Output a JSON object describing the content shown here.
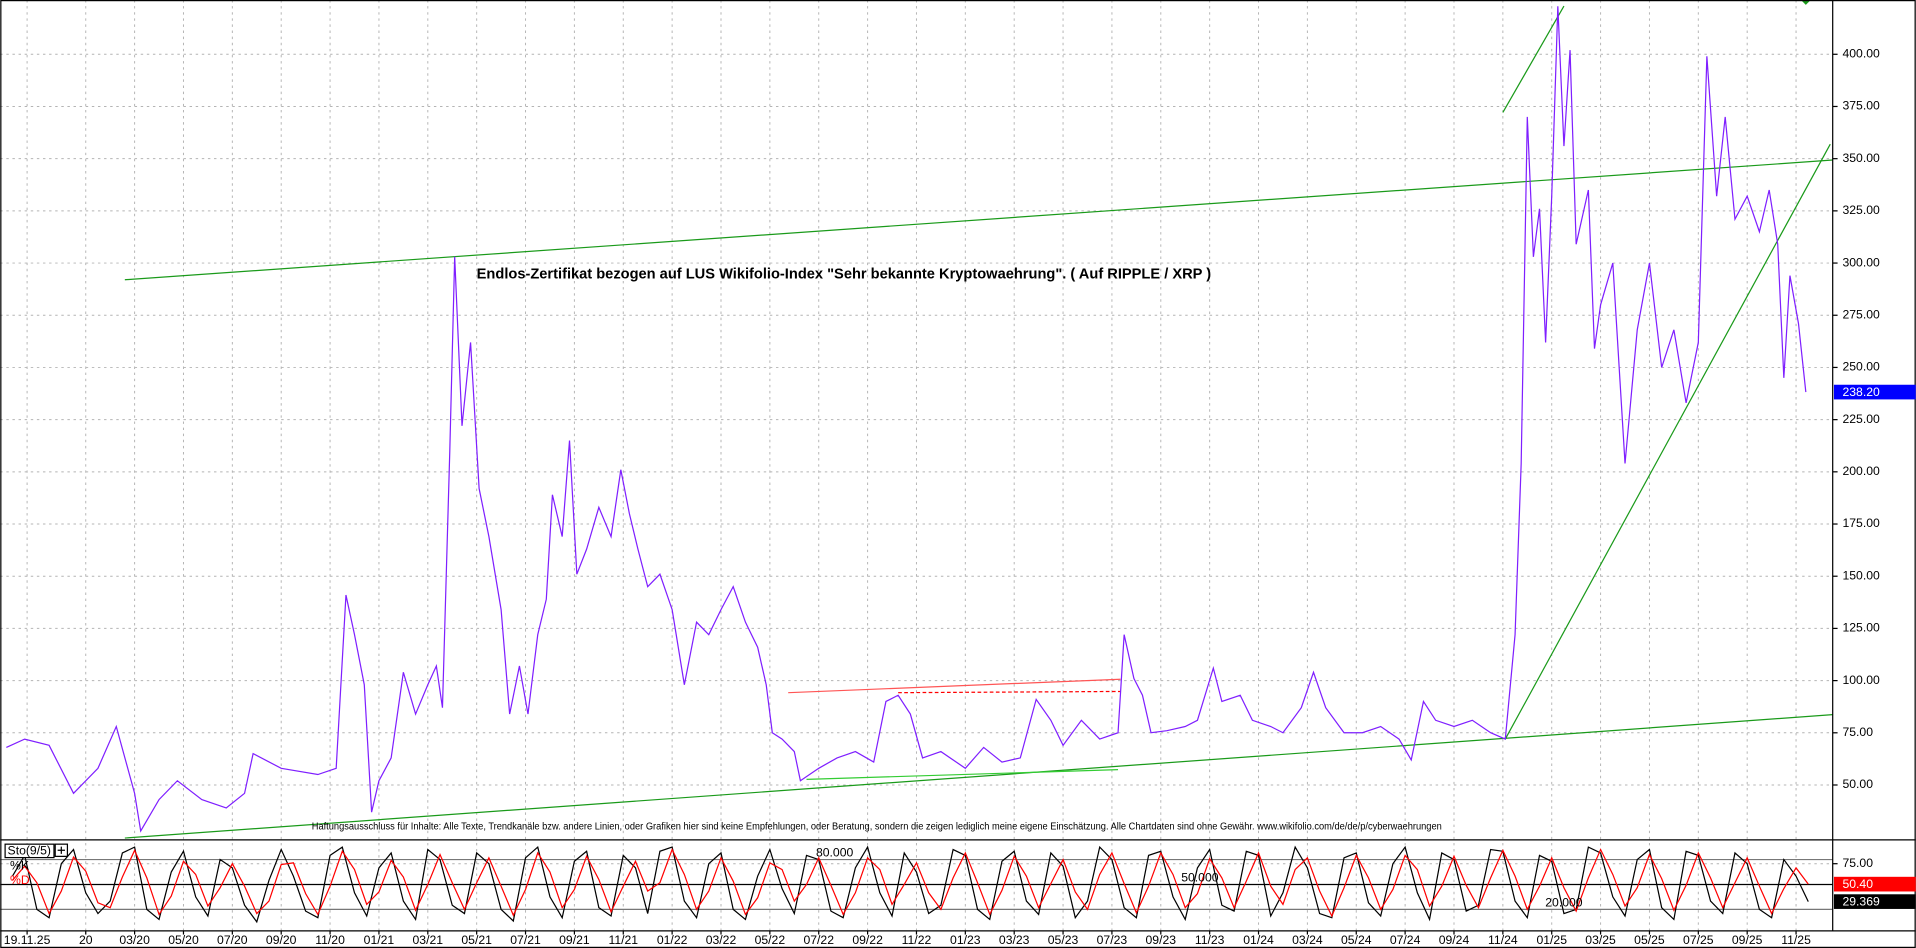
{
  "chart_data": [
    {
      "type": "line",
      "title": "Endlos-Zertifikat bezogen auf LUS Wikifolio-Index \"Sehr bekannte Kryptowaehrung\". ( Auf RIPPLE / XRP )",
      "footnote": "Haftungsausschluss für Inhalte: Alle Texte, Trendkanäle bzw. andere Linien, oder Grafiken hier sind keine Empfehlungen, oder Beratung, sondern die zeigen lediglich meine eigene Einschätzung. Alle Chartdaten sind ohne Gewähr.  www.wikifolio.com/de/de/p/cyberwaehrungen",
      "x": [
        -1.25,
        -0.5,
        0.5,
        1.5,
        2.5,
        3.25,
        4,
        4.25,
        5,
        5.75,
        6.75,
        7.75,
        8.5,
        8.85,
        10,
        11.5,
        12.25,
        12.65,
        13,
        13.4,
        13.7,
        14,
        14.5,
        15,
        15.5,
        16,
        16.35,
        16.6,
        16.9,
        17.1,
        17.4,
        17.75,
        18.1,
        18.5,
        19,
        19.35,
        19.75,
        20.1,
        20.5,
        20.85,
        21.1,
        21.5,
        21.8,
        22.1,
        22.5,
        23,
        23.5,
        23.9,
        24.25,
        24.6,
        25,
        25.5,
        26,
        26.5,
        27,
        27.5,
        28,
        28.5,
        29,
        29.5,
        29.85,
        30.1,
        30.5,
        31,
        31.25,
        32,
        32.75,
        33.5,
        34.25,
        34.75,
        35.25,
        35.75,
        36.25,
        37,
        38,
        38.75,
        39.5,
        40.25,
        40.9,
        41.5,
        42,
        42.75,
        43.5,
        44.25,
        44.5,
        44.9,
        45.25,
        45.6,
        46.25,
        47,
        47.5,
        48.15,
        48.5,
        49.25,
        49.75,
        50.5,
        51,
        51.75,
        52.25,
        52.75,
        53.5,
        54.25,
        55,
        55.75,
        56.25,
        56.75,
        57.25,
        58,
        58.75,
        59.5,
        60.1,
        60.5,
        60.75,
        61,
        61.25,
        61.5,
        61.75,
        62,
        62.25,
        62.5,
        62.75,
        63,
        63.5,
        63.75,
        64,
        64.5,
        65,
        65.5,
        66,
        66.5,
        67,
        67.5,
        68,
        68.35,
        68.75,
        69.1,
        69.5,
        70,
        70.5,
        70.9,
        71.25,
        71.5,
        71.75,
        72.1,
        72.4
      ],
      "series": [
        {
          "color": "#7f1fff",
          "last_label": "238.20",
          "label_color": "#0000ff",
          "values": [
            68,
            72,
            69,
            46,
            58,
            78,
            46,
            28,
            43,
            52,
            43,
            39,
            46,
            65,
            58,
            55,
            58,
            141,
            122,
            98,
            37,
            52,
            63,
            104,
            84,
            98,
            107,
            87,
            210,
            303,
            222,
            262,
            192,
            169,
            134,
            84,
            107,
            84,
            122,
            139,
            189,
            169,
            215,
            151,
            163,
            183,
            169,
            201,
            180,
            163,
            145,
            151,
            134,
            98,
            128,
            122,
            134,
            145,
            128,
            116,
            98,
            75,
            72,
            66,
            52,
            58,
            63,
            66,
            61,
            90,
            93,
            84,
            63,
            66,
            58,
            68,
            61,
            63,
            91,
            81,
            69,
            81,
            72,
            75,
            122,
            101,
            93,
            75,
            76,
            78,
            81,
            106,
            90,
            93,
            81,
            78,
            75,
            87,
            104,
            87,
            75,
            75,
            78,
            72,
            62,
            90,
            81,
            78,
            81,
            75,
            72,
            122,
            204,
            370,
            303,
            326,
            262,
            332,
            423,
            356,
            402,
            309,
            335,
            259,
            280,
            300,
            204,
            268,
            300,
            250,
            268,
            233,
            262,
            399,
            332,
            370,
            321,
            332,
            315,
            335,
            309,
            245,
            294,
            271,
            238.2
          ]
        }
      ],
      "xlim": [
        -1.5,
        73.5
      ],
      "ylim": [
        24,
        426
      ],
      "yticks": [
        {
          "value": 50,
          "label": "50.00"
        },
        {
          "value": 75,
          "label": "75.00"
        },
        {
          "value": 100,
          "label": "100.00"
        },
        {
          "value": 125,
          "label": "125.00"
        },
        {
          "value": 150,
          "label": "150.00"
        },
        {
          "value": 175,
          "label": "175.00"
        },
        {
          "value": 200,
          "label": "200.00"
        },
        {
          "value": 225,
          "label": "225.00"
        },
        {
          "value": 250,
          "label": "250.00"
        },
        {
          "value": 275,
          "label": "275.00"
        },
        {
          "value": 300,
          "label": "300.00"
        },
        {
          "value": 325,
          "label": "325.00"
        },
        {
          "value": 350,
          "label": "350.00"
        },
        {
          "value": 375,
          "label": "375.00"
        },
        {
          "value": 400,
          "label": "400.00"
        }
      ],
      "grid": true
    },
    {
      "type": "line",
      "title": "Sto(9/5)",
      "x": [
        -1,
        -0.5,
        0,
        0.5,
        1,
        1.5,
        2,
        2.5,
        3,
        3.5,
        4,
        4.5,
        5,
        5.5,
        6,
        6.5,
        7,
        7.5,
        8,
        8.5,
        9,
        9.5,
        10,
        10.5,
        11,
        11.5,
        12,
        12.5,
        13,
        13.5,
        14,
        14.5,
        15,
        15.5,
        16,
        16.5,
        17,
        17.5,
        18,
        18.5,
        19,
        19.5,
        20,
        20.5,
        21,
        21.5,
        22,
        22.5,
        23,
        23.5,
        24,
        24.5,
        25,
        25.5,
        26,
        26.5,
        27,
        27.5,
        28,
        28.5,
        29,
        29.5,
        30,
        30.5,
        31,
        31.5,
        32,
        32.5,
        33,
        33.5,
        34,
        34.5,
        35,
        35.5,
        36,
        36.5,
        37,
        37.5,
        38,
        38.5,
        39,
        39.5,
        40,
        40.5,
        41,
        41.5,
        42,
        42.5,
        43,
        43.5,
        44,
        44.5,
        45,
        45.5,
        46,
        46.5,
        47,
        47.5,
        48,
        48.5,
        49,
        49.5,
        50,
        50.5,
        51,
        51.5,
        52,
        52.5,
        53,
        53.5,
        54,
        54.5,
        55,
        55.5,
        56,
        56.5,
        57,
        57.5,
        58,
        58.5,
        59,
        59.5,
        60,
        60.5,
        61,
        61.5,
        62,
        62.5,
        63,
        63.5,
        64,
        64.5,
        65,
        65.5,
        66,
        66.5,
        67,
        67.5,
        68,
        68.5,
        69,
        69.5,
        70,
        70.5,
        71,
        71.5,
        72,
        72.5
      ],
      "series": [
        {
          "name": "%K",
          "color": "#000000",
          "last_label": "29.369",
          "label_color": "#000000",
          "values": [
            60,
            85,
            20,
            10,
            75,
            92,
            40,
            15,
            30,
            88,
            95,
            20,
            8,
            65,
            90,
            35,
            12,
            80,
            70,
            25,
            5,
            55,
            92,
            60,
            18,
            10,
            85,
            95,
            40,
            12,
            70,
            88,
            30,
            8,
            92,
            80,
            25,
            15,
            88,
            75,
            20,
            6,
            82,
            95,
            35,
            10,
            78,
            90,
            22,
            12,
            85,
            70,
            15,
            90,
            95,
            30,
            10,
            75,
            88,
            20,
            8,
            60,
            92,
            45,
            15,
            85,
            80,
            18,
            10,
            70,
            95,
            40,
            12,
            88,
            65,
            15,
            25,
            92,
            85,
            20,
            8,
            78,
            90,
            30,
            14,
            88,
            72,
            10,
            30,
            95,
            80,
            22,
            10,
            85,
            90,
            35,
            8,
            70,
            92,
            25,
            18,
            90,
            85,
            12,
            40,
            95,
            70,
            15,
            10,
            82,
            88,
            28,
            12,
            75,
            95,
            40,
            8,
            88,
            80,
            18,
            25,
            92,
            90,
            30,
            10,
            85,
            78,
            15,
            20,
            95,
            88,
            35,
            12,
            80,
            92,
            22,
            8,
            90,
            85,
            30,
            15,
            88,
            75,
            20,
            10,
            80,
            60,
            29.369
          ]
        },
        {
          "name": "%D",
          "color": "#ff0000",
          "last_label": "50.40",
          "label_color": "#ff0000",
          "values": [
            55,
            72,
            52,
            15,
            42,
            83,
            66,
            28,
            22,
            59,
            91,
            58,
            14,
            36,
            78,
            62,
            24,
            46,
            75,
            48,
            15,
            30,
            74,
            76,
            39,
            14,
            48,
            90,
            68,
            26,
            41,
            79,
            59,
            19,
            50,
            86,
            52,
            20,
            52,
            82,
            48,
            13,
            44,
            88,
            65,
            22,
            44,
            84,
            56,
            17,
            48,
            78,
            42,
            52,
            92,
            62,
            20,
            42,
            82,
            54,
            14,
            34,
            76,
            68,
            30,
            50,
            82,
            49,
            14,
            40,
            82,
            68,
            26,
            50,
            76,
            40,
            20,
            58,
            88,
            52,
            14,
            43,
            84,
            60,
            22,
            51,
            80,
            41,
            20,
            62,
            88,
            51,
            16,
            48,
            88,
            62,
            22,
            39,
            81,
            58,
            22,
            54,
            88,
            48,
            26,
            68,
            82,
            42,
            12,
            46,
            85,
            58,
            20,
            44,
            85,
            68,
            24,
            48,
            84,
            49,
            22,
            58,
            91,
            60,
            20,
            48,
            82,
            46,
            18,
            58,
            92,
            62,
            24,
            46,
            86,
            57,
            19,
            49,
            88,
            58,
            22,
            52,
            82,
            48,
            15,
            45,
            70,
            50.4
          ]
        }
      ],
      "xlim": [
        -1.5,
        73.5
      ],
      "ylim": [
        0,
        100
      ],
      "yticks": [
        {
          "value": 75,
          "label": "75.00"
        }
      ],
      "levels": [
        {
          "value": 80,
          "label": "80.000"
        },
        {
          "value": 50,
          "label": "50.000"
        },
        {
          "value": 20,
          "label": "20.000"
        }
      ],
      "xticks": [
        {
          "value": -0.4,
          "label": "19.11.25"
        },
        {
          "value": 2,
          "label": "20"
        },
        {
          "value": 4,
          "label": "03/20"
        },
        {
          "value": 6,
          "label": "05/20"
        },
        {
          "value": 8,
          "label": "07/20"
        },
        {
          "value": 10,
          "label": "09/20"
        },
        {
          "value": 12,
          "label": "11/20"
        },
        {
          "value": 14,
          "label": "01/21"
        },
        {
          "value": 16,
          "label": "03/21"
        },
        {
          "value": 18,
          "label": "05/21"
        },
        {
          "value": 20,
          "label": "07/21"
        },
        {
          "value": 22,
          "label": "09/21"
        },
        {
          "value": 24,
          "label": "11/21"
        },
        {
          "value": 26,
          "label": "01/22"
        },
        {
          "value": 28,
          "label": "03/22"
        },
        {
          "value": 30,
          "label": "05/22"
        },
        {
          "value": 32,
          "label": "07/22"
        },
        {
          "value": 34,
          "label": "09/22"
        },
        {
          "value": 36,
          "label": "11/22"
        },
        {
          "value": 38,
          "label": "01/23"
        },
        {
          "value": 40,
          "label": "03/23"
        },
        {
          "value": 42,
          "label": "05/23"
        },
        {
          "value": 44,
          "label": "07/23"
        },
        {
          "value": 46,
          "label": "09/23"
        },
        {
          "value": 48,
          "label": "11/23"
        },
        {
          "value": 50,
          "label": "01/24"
        },
        {
          "value": 52,
          "label": "03/24"
        },
        {
          "value": 54,
          "label": "05/24"
        },
        {
          "value": 56,
          "label": "07/24"
        },
        {
          "value": 58,
          "label": "09/24"
        },
        {
          "value": 60,
          "label": "11/24"
        },
        {
          "value": 62,
          "label": "01/25"
        },
        {
          "value": 64,
          "label": "03/25"
        },
        {
          "value": 66,
          "label": "05/25"
        },
        {
          "value": 68,
          "label": "07/25"
        },
        {
          "value": 70,
          "label": "09/25"
        },
        {
          "value": 72,
          "label": "11/25"
        }
      ],
      "grid": true
    }
  ]
}
